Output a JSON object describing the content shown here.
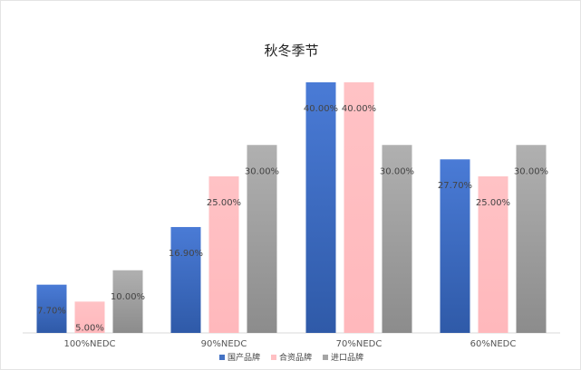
{
  "chart_data": {
    "type": "bar",
    "title": "秋冬季节",
    "categories": [
      "100%NEDC",
      "90%NEDC",
      "70%NEDC",
      "60%NEDC"
    ],
    "series": [
      {
        "name": "国产品牌",
        "values": [
          7.7,
          16.9,
          40.0,
          27.7
        ],
        "labels": [
          "7.70%",
          "16.90%",
          "40.00%",
          "27.70%"
        ],
        "color": "#4472C4"
      },
      {
        "name": "合资品牌",
        "values": [
          5.0,
          25.0,
          40.0,
          25.0
        ],
        "labels": [
          "5.00%",
          "25.00%",
          "40.00%",
          "25.00%"
        ],
        "color": "#FFC0C3"
      },
      {
        "name": "进口品牌",
        "values": [
          10.0,
          30.0,
          30.0,
          30.0
        ],
        "labels": [
          "10.00%",
          "30.00%",
          "30.00%",
          "30.00%"
        ],
        "color": "#A5A5A5"
      }
    ],
    "ylim": [
      0,
      40
    ],
    "grid": false,
    "legend_position": "bottom"
  }
}
